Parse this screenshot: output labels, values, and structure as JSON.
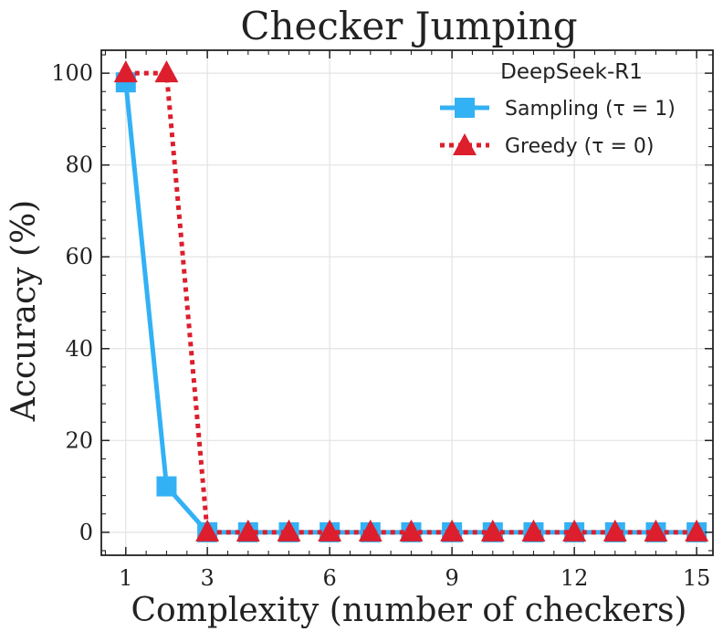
{
  "chart_data": {
    "type": "line",
    "title": "Checker Jumping",
    "xlabel": "Complexity (number of checkers)",
    "ylabel": "Accuracy (%)",
    "xlim": [
      0.4,
      15.4
    ],
    "ylim": [
      -5,
      105
    ],
    "xticks": [
      1,
      3,
      6,
      9,
      12,
      15
    ],
    "yticks": [
      0,
      20,
      40,
      60,
      80,
      100
    ],
    "grid": true,
    "legend": {
      "title": "DeepSeek-R1",
      "position": "top-right"
    },
    "series": [
      {
        "name": "Sampling (τ = 1)",
        "color": "#33b1f5",
        "line_style": "solid",
        "marker": "square",
        "x": [
          1,
          2,
          3,
          4,
          5,
          6,
          7,
          8,
          9,
          10,
          11,
          12,
          13,
          14,
          15
        ],
        "y": [
          98,
          10,
          0,
          0,
          0,
          0,
          0,
          0,
          0,
          0,
          0,
          0,
          0,
          0,
          0
        ]
      },
      {
        "name": "Greedy (τ = 0)",
        "color": "#dc1e2d",
        "line_style": "dotted",
        "marker": "triangle",
        "x": [
          1,
          2,
          3,
          4,
          5,
          6,
          7,
          8,
          9,
          10,
          11,
          12,
          13,
          14,
          15
        ],
        "y": [
          100,
          100,
          0,
          0,
          0,
          0,
          0,
          0,
          0,
          0,
          0,
          0,
          0,
          0,
          0
        ]
      }
    ]
  }
}
